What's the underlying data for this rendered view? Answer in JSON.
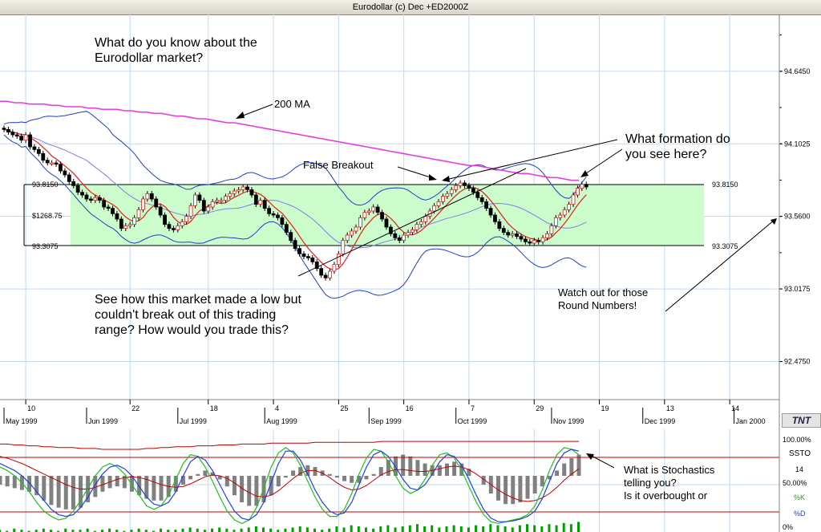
{
  "window": {
    "title": "Eurodollar (c) Dec +ED2000Z"
  },
  "brand_label": "TNT",
  "colors": {
    "range_fill": "#ccfccc",
    "ma200": "#e040e0",
    "bollinger": "#2040c0",
    "ma_mid": "#8080e0",
    "ma_short": "#e02020",
    "candle_up": "#ffffff",
    "candle_down": "#000000",
    "grid": "#c0d8f0",
    "stoch_k": "#20c020",
    "stoch_d": "#2040e0",
    "stoch_signal": "#c00000",
    "histogram": "#808080",
    "volume": "#00a000"
  },
  "annotations": {
    "intro": "What do you know about the\nEurodollar market?",
    "ma200": "200 MA",
    "false_breakout": "False Breakout",
    "formation": "What formation do\nyou see here?",
    "range_question": "See how this market made a low but\ncouldn't break out of this trading\nrange? How would you trade this?",
    "round_numbers": "Watch out for those\nRound Numbers!",
    "stochastics": "What is Stochastics\ntelling you?\nIs it overbought or"
  },
  "chart_data": [
    {
      "type": "candlestick",
      "title": "Eurodollar (c) Dec +ED2000Z",
      "y_ticks": [
        "94.6450",
        "94.1025",
        "93.5600",
        "93.0175",
        "92.4750"
      ],
      "y_tick_values": [
        94.645,
        94.1025,
        93.56,
        93.0175,
        92.475
      ],
      "ylim": [
        92.19,
        95.07
      ],
      "range_high_label": "93.8150",
      "range_low_label": "93.3075",
      "range_high": 93.815,
      "range_low": 93.3075,
      "range_height_label": "$1268.75",
      "x_day_labels": [
        {
          "text": "10",
          "x": 5
        },
        {
          "text": "22",
          "x": 29
        },
        {
          "text": "18",
          "x": 47
        },
        {
          "text": "4",
          "x": 62
        },
        {
          "text": "25",
          "x": 77
        },
        {
          "text": "16",
          "x": 92
        },
        {
          "text": "7",
          "x": 107
        },
        {
          "text": "29",
          "x": 122
        },
        {
          "text": "19",
          "x": 137
        },
        {
          "text": "13",
          "x": 152
        },
        {
          "text": "14",
          "x": 167
        }
      ],
      "x_month_labels": [
        {
          "text": "May 1999",
          "x": 0
        },
        {
          "text": "Jun 1999",
          "x": 19
        },
        {
          "text": "Jul 1999",
          "x": 40
        },
        {
          "text": "Aug 1999",
          "x": 60
        },
        {
          "text": "Sep 1999",
          "x": 84
        },
        {
          "text": "Oct 1999",
          "x": 104
        },
        {
          "text": "Nov 1999",
          "x": 126
        },
        {
          "text": "Dec 1999",
          "x": 147
        },
        {
          "text": "Jan 2000",
          "x": 168
        }
      ],
      "closes": [
        94.21,
        94.19,
        94.17,
        94.16,
        94.13,
        94.17,
        94.08,
        94.06,
        94.03,
        93.98,
        93.96,
        93.96,
        93.95,
        93.9,
        93.87,
        93.82,
        93.79,
        93.74,
        93.72,
        93.69,
        93.68,
        93.7,
        93.68,
        93.63,
        93.62,
        93.58,
        93.54,
        93.47,
        93.49,
        93.5,
        93.55,
        93.61,
        93.69,
        93.73,
        93.69,
        93.63,
        93.57,
        93.5,
        93.47,
        93.46,
        93.49,
        93.52,
        93.56,
        93.64,
        93.72,
        93.68,
        93.6,
        93.63,
        93.67,
        93.68,
        93.68,
        93.71,
        93.73,
        93.75,
        93.76,
        93.78,
        93.76,
        93.72,
        93.65,
        93.68,
        93.62,
        93.58,
        93.57,
        93.55,
        93.5,
        93.44,
        93.38,
        93.32,
        93.28,
        93.26,
        93.25,
        93.22,
        93.17,
        93.12,
        93.1,
        93.15,
        93.2,
        93.28,
        93.38,
        93.42,
        93.45,
        93.48,
        93.55,
        93.59,
        93.6,
        93.63,
        93.59,
        93.54,
        93.48,
        93.43,
        93.4,
        93.38,
        93.42,
        93.44,
        93.46,
        93.5,
        93.52,
        93.56,
        93.6,
        93.64,
        93.67,
        93.71,
        93.73,
        93.76,
        93.79,
        93.81,
        93.79,
        93.77,
        93.74,
        93.7,
        93.67,
        93.62,
        93.57,
        93.52,
        93.47,
        93.44,
        93.42,
        93.43,
        93.41,
        93.39,
        93.37,
        93.36,
        93.38,
        93.37,
        93.4,
        93.43,
        93.49,
        93.55,
        93.57,
        93.61,
        93.65,
        93.72,
        93.77,
        93.8,
        93.78
      ],
      "ma200": [
        94.42,
        94.42,
        94.41,
        94.41,
        94.4,
        94.4,
        94.4,
        94.39,
        94.39,
        94.38,
        94.38,
        94.38,
        94.37,
        94.37,
        94.36,
        94.36,
        94.36,
        94.35,
        94.35,
        94.34,
        94.34,
        94.33,
        94.33,
        94.32,
        94.31,
        94.31,
        94.3,
        94.29,
        94.29,
        94.28,
        94.27,
        94.26,
        94.26,
        94.25,
        94.24,
        94.23,
        94.22,
        94.21,
        94.2,
        94.19,
        94.18,
        94.17,
        94.16,
        94.15,
        94.14,
        94.13,
        94.12,
        94.11,
        94.1,
        94.09,
        94.08,
        94.07,
        94.06,
        94.05,
        94.04,
        94.03,
        94.02,
        94.01,
        94.0,
        93.99,
        93.98,
        93.97,
        93.96,
        93.95,
        93.94,
        93.94,
        93.93,
        93.92,
        93.91,
        93.9,
        93.89,
        93.88,
        93.88,
        93.87,
        93.86,
        93.85,
        93.85,
        93.84,
        93.83,
        93.83
      ]
    },
    {
      "type": "line",
      "title": "SSTO",
      "y_ticks": [
        "100.00%",
        "50.00%",
        "0%"
      ],
      "ylim": [
        0,
        100
      ],
      "legend": [
        "14",
        "%K",
        "%D"
      ],
      "upper_band": 80,
      "lower_band": 20,
      "k": [
        70,
        66,
        60,
        52,
        42,
        30,
        20,
        14,
        10,
        12,
        20,
        32,
        46,
        60,
        70,
        74,
        70,
        62,
        50,
        38,
        26,
        22,
        26,
        38,
        56,
        74,
        84,
        82,
        70,
        54,
        36,
        20,
        10,
        6,
        10,
        24,
        46,
        70,
        86,
        92,
        86,
        72,
        54,
        36,
        22,
        14,
        14,
        22,
        40,
        62,
        80,
        90,
        88,
        76,
        60,
        46,
        40,
        44,
        56,
        72,
        84,
        86,
        80,
        66,
        48,
        30,
        16,
        8,
        6,
        8,
        10,
        12,
        16,
        26,
        44,
        66,
        84,
        92,
        90,
        84
      ],
      "d": [
        74,
        70,
        66,
        60,
        52,
        42,
        32,
        22,
        16,
        14,
        16,
        24,
        36,
        50,
        62,
        70,
        72,
        68,
        60,
        48,
        36,
        28,
        26,
        30,
        42,
        60,
        76,
        82,
        78,
        66,
        50,
        34,
        20,
        12,
        10,
        16,
        30,
        52,
        74,
        88,
        88,
        78,
        62,
        44,
        30,
        20,
        16,
        18,
        30,
        50,
        70,
        84,
        88,
        82,
        70,
        56,
        46,
        44,
        50,
        62,
        76,
        84,
        82,
        72,
        56,
        38,
        22,
        12,
        8,
        8,
        9,
        11,
        14,
        20,
        34,
        54,
        74,
        86,
        90,
        88
      ],
      "signal": [
        82,
        80,
        77,
        74,
        70,
        66,
        62,
        58,
        54,
        50,
        47,
        45,
        45,
        47,
        50,
        53,
        56,
        58,
        59,
        58,
        56,
        53,
        50,
        48,
        47,
        48,
        51,
        55,
        59,
        61,
        60,
        57,
        52,
        46,
        41,
        37,
        36,
        38,
        43,
        50,
        57,
        63,
        66,
        66,
        63,
        58,
        52,
        47,
        44,
        45,
        49,
        55,
        61,
        65,
        67,
        67,
        66,
        65,
        65,
        66,
        68,
        70,
        71,
        70,
        67,
        62,
        56,
        50,
        44,
        39,
        35,
        32,
        31,
        32,
        35,
        40,
        47,
        55,
        62,
        68
      ],
      "histogram": [
        -10,
        -12,
        -14,
        -16,
        -18,
        -22,
        -28,
        -33,
        -36,
        -38,
        -38,
        -36,
        -30,
        -24,
        -18,
        -14,
        -12,
        -14,
        -18,
        -22,
        -26,
        -28,
        -28,
        -24,
        -18,
        -10,
        -4,
        2,
        6,
        4,
        -4,
        -12,
        -22,
        -30,
        -34,
        -34,
        -30,
        -22,
        -12,
        -2,
        6,
        10,
        12,
        10,
        6,
        2,
        -2,
        -6,
        -8,
        -8,
        -4,
        2,
        10,
        18,
        22,
        24,
        22,
        18,
        14,
        12,
        12,
        14,
        16,
        14,
        8,
        0,
        -10,
        -20,
        -28,
        -32,
        -32,
        -30,
        -26,
        -20,
        -12,
        -4,
        6,
        14,
        20,
        24
      ],
      "upper_curve": [
        96,
        96,
        95,
        95,
        94,
        94,
        93,
        93,
        92,
        92,
        92,
        91,
        91,
        91,
        90,
        90,
        90,
        90,
        90,
        90,
        91,
        91,
        92,
        92,
        93,
        93,
        93,
        94,
        94,
        94,
        95,
        95,
        95,
        96,
        96,
        96,
        96,
        97,
        97,
        97,
        97,
        97,
        97,
        98,
        98,
        98,
        98,
        98,
        98,
        98,
        98,
        98,
        99,
        99,
        99,
        99,
        99,
        99,
        99,
        99,
        99,
        99,
        99,
        99,
        99,
        99,
        99,
        99,
        99,
        99,
        99,
        99,
        99,
        99,
        99,
        99,
        99,
        99,
        99,
        99
      ],
      "volume": [
        2,
        1,
        3,
        2,
        1,
        2,
        3,
        2,
        1,
        3,
        2,
        2,
        3,
        1,
        2,
        3,
        2,
        1,
        2,
        3,
        2,
        1,
        3,
        2,
        2,
        3,
        4,
        3,
        2,
        3,
        4,
        3,
        2,
        3,
        4,
        5,
        4,
        3,
        2,
        3,
        4,
        5,
        4,
        3,
        2,
        3,
        5,
        4,
        6,
        5,
        4,
        3,
        5,
        6,
        4,
        5,
        6,
        7,
        5,
        6,
        4,
        5,
        6,
        5,
        4,
        6,
        5,
        7,
        6,
        5,
        4,
        6,
        7,
        6,
        5,
        7,
        6,
        8,
        7,
        9
      ]
    }
  ]
}
